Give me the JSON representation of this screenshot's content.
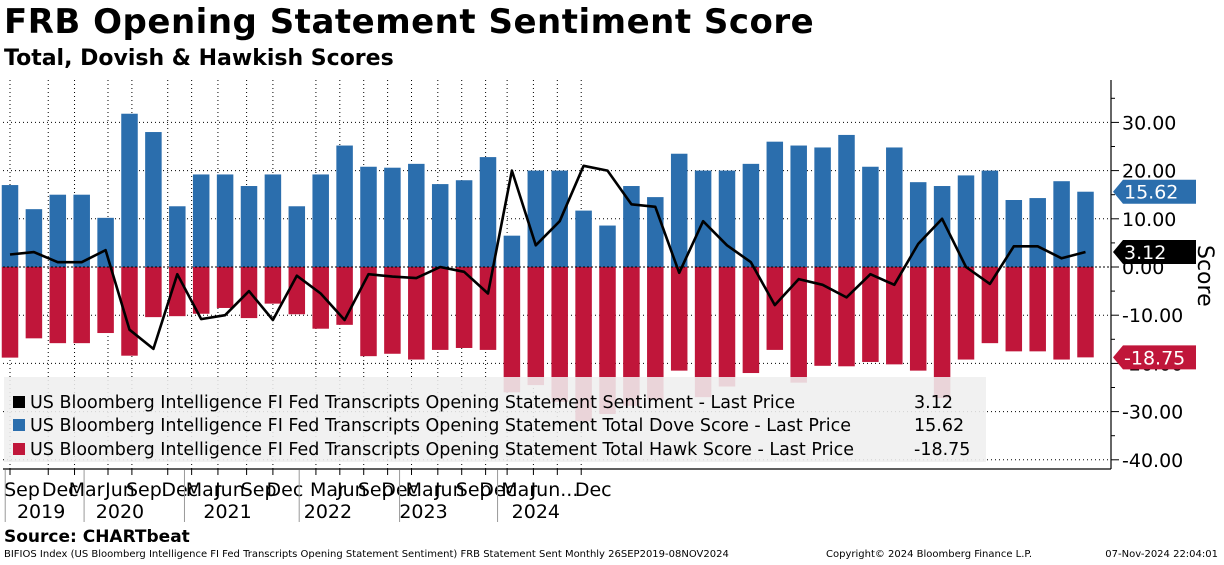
{
  "title": "FRB Opening Statement Sentiment Score",
  "subtitle": "Total, Dovish & Hawkish Scores",
  "source": "Source: CHARTbeat",
  "footer": {
    "left": "BIFIOS Index (US Bloomberg Intelligence FI Fed Transcripts Opening Statement Sentiment) FRB Statement Sent  Monthly 26SEP2019-08NOV2024",
    "copyright": "Copyright© 2024 Bloomberg Finance L.P.",
    "timestamp": "07-Nov-2024 22:04:01"
  },
  "colors": {
    "dove": "#2b6ead",
    "hawk": "#c0163a",
    "sentiment": "#000000",
    "grid": "#000000"
  },
  "chart_data": {
    "type": "bar",
    "title": "FRB Opening Statement Sentiment Score",
    "subtitle": "Total, Dovish & Hawkish Scores",
    "ylabel": "Score",
    "ylim": [
      -42,
      38
    ],
    "yticks": [
      30,
      20,
      10,
      0,
      -10,
      -20,
      -30,
      -40
    ],
    "ytick_labels": [
      "30.00",
      "20.00",
      "10.00",
      "0.00",
      "-10.00",
      "-20.00",
      "-30.00",
      "-40.00"
    ],
    "x_tick_labels": [
      "Sep",
      "Dec",
      "Mar",
      "Jun",
      "Sep",
      "Dec",
      "Mar",
      "Jun",
      "Sep",
      "Dec",
      "Mar",
      "Jun",
      "Sep",
      "Dec",
      "Mar",
      "Jun",
      "Sep",
      "Dec",
      "Mar",
      "Jun",
      "...",
      "Dec"
    ],
    "x_tick_meeting_index": [
      0,
      1.6,
      2.7,
      4.1,
      5.1,
      6.6,
      7.6,
      8.7,
      9.9,
      11,
      12.8,
      13.8,
      14.8,
      15.8,
      16.8,
      17.9,
      18.9,
      19.9,
      20.8,
      21.9,
      22.9,
      23.9
    ],
    "year_labels": [
      "2019",
      "2020",
      "2021",
      "2022",
      "2023",
      "2024"
    ],
    "year_label_meeting_index": [
      0.8,
      4.1,
      8.6,
      12.8,
      16.8,
      21.5
    ],
    "series": [
      {
        "name": "US Bloomberg Intelligence FI Fed Transcripts Opening Statement Total Dove Score",
        "type": "bar",
        "values": [
          17,
          12,
          15,
          15,
          10.2,
          31.8,
          28,
          12.6,
          19.2,
          19.2,
          16.8,
          19.2,
          12.6,
          19.2,
          25.2,
          20.8,
          20.6,
          21.4,
          17.2,
          18,
          22.8,
          6.5,
          20,
          20,
          11.7,
          8.6,
          16.8,
          14.5,
          23.5,
          20,
          20,
          21.4,
          26,
          25.2,
          24.8,
          27.4,
          20.8,
          24.8,
          17.6,
          16.8,
          19,
          20,
          13.9,
          14.3,
          17.8,
          15.62
        ]
      },
      {
        "name": "US Bloomberg Intelligence FI Fed Transcripts Opening Statement Total Hawk Score",
        "type": "bar",
        "values": [
          -18.8,
          -14.8,
          -15.8,
          -15.8,
          -13.7,
          -18.4,
          -10.4,
          -10.2,
          -9.7,
          -8.5,
          -10.6,
          -7.6,
          -9.8,
          -12.8,
          -12,
          -18.5,
          -18,
          -19.2,
          -17.2,
          -16.8,
          -17.2,
          -26,
          -24.5,
          -28,
          -32,
          -30.5,
          -28.8,
          -27.5,
          -21.5,
          -27,
          -24.8,
          -22,
          -17.2,
          -24,
          -20.5,
          -20.6,
          -19.7,
          -20.2,
          -21.5,
          -27.2,
          -19.2,
          -15.8,
          -17.5,
          -17.5,
          -19.2,
          -18.75
        ]
      },
      {
        "name": "US Bloomberg Intelligence FI Fed Transcripts Opening Statement Sentiment",
        "type": "line",
        "values": [
          2.6,
          3.1,
          1,
          1,
          3.5,
          -13,
          -17,
          -1.5,
          -10.8,
          -10,
          -5,
          -11,
          -1.8,
          -5.5,
          -11,
          -1.5,
          -2,
          -2.3,
          0,
          -1,
          -5.5,
          20,
          4.5,
          9.5,
          21,
          20,
          13,
          12.5,
          -1.2,
          9.5,
          4.5,
          1,
          -7.9,
          -2.5,
          -3.7,
          -6.3,
          -1.5,
          -3.7,
          4.8,
          10,
          0,
          -3.5,
          4.3,
          4.3,
          1.8,
          3.12
        ]
      }
    ],
    "last_price_labels": {
      "dove": "15.62",
      "sentiment": "3.12",
      "hawk": "-18.75"
    },
    "legend": {
      "placement": "bottom-left",
      "entries": [
        {
          "label": "US Bloomberg Intelligence FI Fed Transcripts Opening Statement Sentiment - Last Price",
          "value": "3.12"
        },
        {
          "label": "US Bloomberg Intelligence FI Fed Transcripts Opening Statement Total Dove Score - Last Price",
          "value": "15.62"
        },
        {
          "label": "US Bloomberg Intelligence FI Fed Transcripts Opening Statement Total Hawk Score - Last Price",
          "value": "-18.75"
        }
      ]
    }
  }
}
